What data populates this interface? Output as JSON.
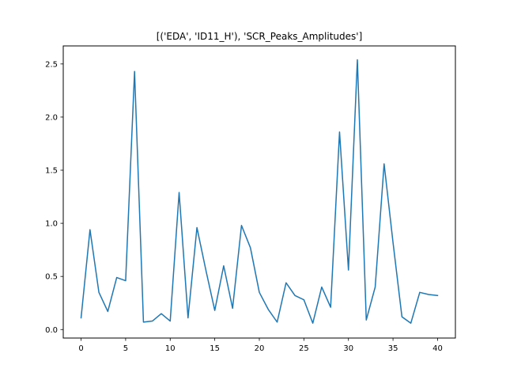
{
  "chart_data": {
    "type": "line",
    "title": "[('EDA', 'ID11_H'), 'SCR_Peaks_Amplitudes']",
    "xlabel": "",
    "ylabel": "",
    "xlim": [
      -2,
      42
    ],
    "ylim": [
      -0.08,
      2.67
    ],
    "grid": false,
    "x_ticks": [
      0,
      5,
      10,
      15,
      20,
      25,
      30,
      35,
      40
    ],
    "y_ticks": [
      0.0,
      0.5,
      1.0,
      1.5,
      2.0,
      2.5
    ],
    "x_tick_labels": [
      "0",
      "5",
      "10",
      "15",
      "20",
      "25",
      "30",
      "35",
      "40"
    ],
    "y_tick_labels": [
      "0.0",
      "0.5",
      "1.0",
      "1.5",
      "2.0",
      "2.5"
    ],
    "series": [
      {
        "color": "#1f77b4",
        "x": [
          0,
          1,
          2,
          3,
          4,
          5,
          6,
          7,
          8,
          9,
          10,
          11,
          12,
          13,
          14,
          15,
          16,
          17,
          18,
          19,
          20,
          21,
          22,
          23,
          24,
          25,
          26,
          27,
          28,
          29,
          30,
          31,
          32,
          33,
          34,
          35,
          36,
          37,
          38,
          39,
          40
        ],
        "values": [
          0.11,
          0.94,
          0.35,
          0.17,
          0.49,
          0.46,
          2.43,
          0.07,
          0.08,
          0.15,
          0.08,
          1.29,
          0.11,
          0.96,
          0.56,
          0.18,
          0.6,
          0.2,
          0.98,
          0.77,
          0.35,
          0.19,
          0.07,
          0.44,
          0.32,
          0.28,
          0.06,
          0.4,
          0.21,
          1.86,
          0.56,
          2.54,
          0.09,
          0.4,
          1.56,
          0.82,
          0.12,
          0.06,
          0.35,
          0.33,
          0.32
        ]
      }
    ]
  }
}
